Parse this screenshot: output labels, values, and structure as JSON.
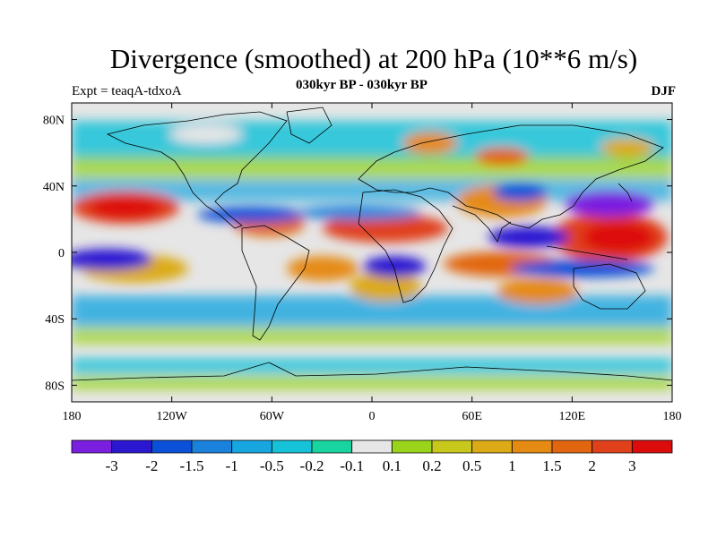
{
  "title": "Divergence (smoothed) at 200 hPa (10**6 m/s)",
  "subtitle_left": "Expt = teaqA-tdxoA",
  "subtitle_center": "030kyr BP - 030kyr BP",
  "season": "DJF",
  "chart_data": {
    "type": "map-contour",
    "title": "Divergence (smoothed) at 200 hPa (10**6 m/s)",
    "projection": "cylindrical-equidistant",
    "lon_range": [
      -180,
      180
    ],
    "lat_range": [
      -90,
      90
    ],
    "x_ticks": [
      "180",
      "120W",
      "60W",
      "0",
      "60E",
      "120E",
      "180"
    ],
    "y_ticks": [
      "80N",
      "40N",
      "0",
      "40S",
      "80S"
    ],
    "colorbar_labels": [
      "-3",
      "-2",
      "-1.5",
      "-1",
      "-0.5",
      "-0.2",
      "-0.1",
      "0.1",
      "0.2",
      "0.5",
      "1",
      "1.5",
      "2",
      "3"
    ],
    "colorbar_colors": [
      "#7a1fe0",
      "#2c17d1",
      "#0a50d8",
      "#1a82dd",
      "#18a6e0",
      "#16c2d8",
      "#18d49e",
      "#e6e6e6",
      "#9ad41a",
      "#c8c81c",
      "#dcaa16",
      "#e58a12",
      "#e2660f",
      "#e0401a",
      "#dd0c0c"
    ]
  }
}
